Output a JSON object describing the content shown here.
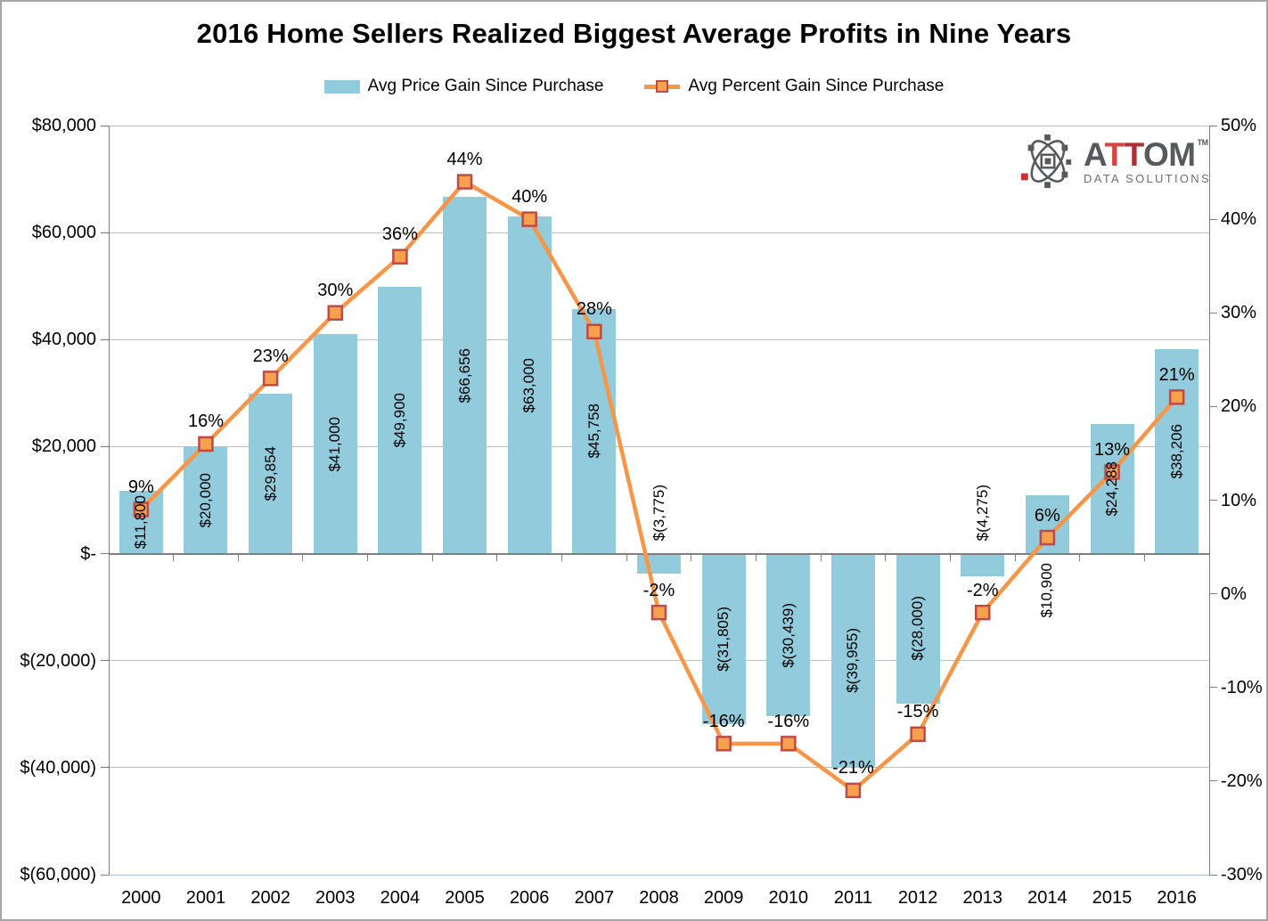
{
  "title": "2016 Home Sellers Realized Biggest Average Profits in Nine Years",
  "chart_data": {
    "type": "bar",
    "subtype": "bar-line combo, dual axis",
    "title": "2016 Home Sellers Realized Biggest Average Profits in Nine Years",
    "categories": [
      "2000",
      "2001",
      "2002",
      "2003",
      "2004",
      "2005",
      "2006",
      "2007",
      "2008",
      "2009",
      "2010",
      "2011",
      "2012",
      "2013",
      "2014",
      "2015",
      "2016"
    ],
    "series": [
      {
        "name": "Avg Price Gain Since Purchase",
        "chart_type": "bar",
        "axis": "left",
        "values": [
          11800,
          20000,
          29854,
          41000,
          49900,
          66656,
          63000,
          45758,
          -3775,
          -31805,
          -30439,
          -39955,
          -28000,
          -4275,
          10900,
          24288,
          38206
        ],
        "labels": [
          "$11,800",
          "$20,000",
          "$29,854",
          "$41,000",
          "$49,900",
          "$66,656",
          "$63,000",
          "$45,758",
          "$(3,775)",
          "$(31,805)",
          "$(30,439)",
          "$(39,955)",
          "$(28,000)",
          "$(4,275)",
          "$10,900",
          "$24,288",
          "$38,206"
        ]
      },
      {
        "name": "Avg Percent Gain Since Purchase",
        "chart_type": "line",
        "axis": "right",
        "values": [
          9,
          16,
          23,
          30,
          36,
          44,
          40,
          28,
          -2,
          -16,
          -16,
          -21,
          -15,
          -2,
          6,
          13,
          21
        ],
        "labels": [
          "9%",
          "16%",
          "23%",
          "30%",
          "36%",
          "44%",
          "40%",
          "28%",
          "-2%",
          "-16%",
          "-16%",
          "-21%",
          "-15%",
          "-2%",
          "6%",
          "13%",
          "21%"
        ]
      }
    ],
    "left_axis": {
      "min": -60000,
      "max": 80000,
      "tick_values": [
        80000,
        60000,
        40000,
        20000,
        0,
        -20000,
        -40000,
        -60000
      ],
      "tick_labels": [
        "$80,000",
        "$60,000",
        "$40,000",
        "$20,000",
        "$-",
        "$(20,000)",
        "$(40,000)",
        "$(60,000)"
      ]
    },
    "right_axis": {
      "min": -30,
      "max": 50,
      "tick_values": [
        50,
        40,
        30,
        20,
        10,
        0,
        -10,
        -20,
        -30
      ],
      "tick_labels": [
        "50%",
        "40%",
        "30%",
        "20%",
        "10%",
        "0%",
        "-10%",
        "-20%",
        "-30%"
      ]
    },
    "xlabel": "",
    "ylabel": "",
    "grid": "horizontal gridlines on, from left dollar axis",
    "legend_position": "top center"
  },
  "colors": {
    "bar": "#92CBDC",
    "line": "#F79646",
    "marker_fill": "#F7A04E",
    "marker_border": "#BE4B48",
    "gridline": "#A9BFE4",
    "axis_line": "#7F7F7F",
    "zero_line": "#7F7F7F",
    "text": "#000000",
    "logo_gray": "#58595B",
    "logo_red_light": "#D8423F",
    "logo_red_dark": "#B02F30",
    "logo_sub_gray": "#6D6E70"
  },
  "logo": {
    "a": "A",
    "t1": "T",
    "t2": "T",
    "om": "OM",
    "tm": "TM",
    "sub": "DATA SOLUTIONS"
  }
}
